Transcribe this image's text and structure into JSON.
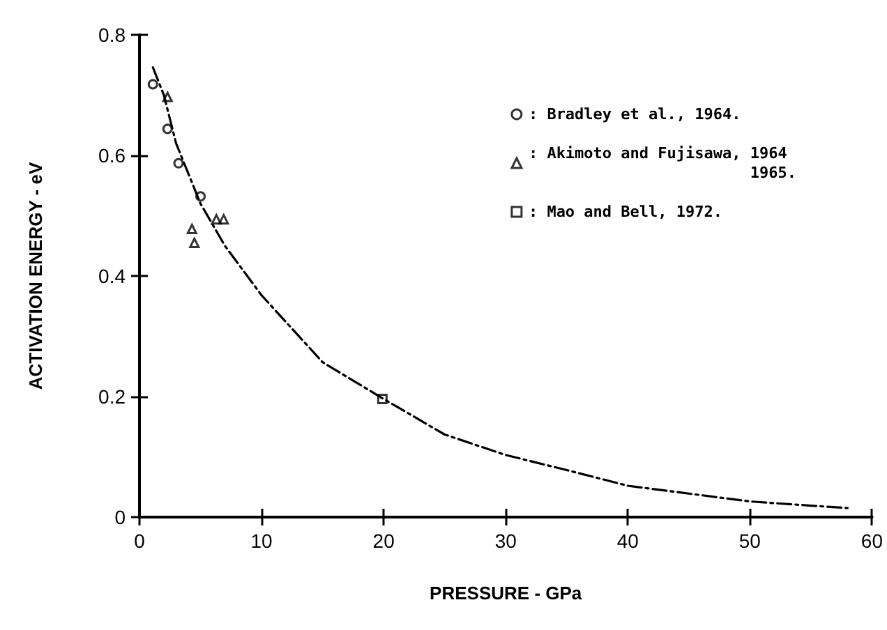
{
  "chart_data": {
    "type": "scatter",
    "xlabel": "PRESSURE - GPa",
    "ylabel": "ACTIVATION ENERGY - eV",
    "xlim": [
      0,
      60
    ],
    "xticks": [
      0,
      10,
      20,
      30,
      40,
      50,
      60
    ],
    "ylim": [
      0,
      0.8
    ],
    "yticks": [
      0,
      0.2,
      0.4,
      0.6,
      0.8
    ],
    "grid": false,
    "legend": "top right",
    "series": [
      {
        "name": ": Bradley et al., 1964.",
        "marker": "circle",
        "color": "#000000",
        "x": [
          1.1,
          2.3,
          3.2,
          5.0
        ],
        "values": [
          0.718,
          0.644,
          0.587,
          0.532
        ]
      },
      {
        "name": ": Akimoto and Fujisawa, 1964\n1965.",
        "marker": "triangle",
        "color": "#000000",
        "x": [
          2.3,
          4.3,
          4.5,
          6.3,
          6.9
        ],
        "values": [
          0.697,
          0.478,
          0.455,
          0.494,
          0.494
        ]
      },
      {
        "name": ": Mao and Bell, 1972.",
        "marker": "square",
        "color": "#000000",
        "x": [
          19.9
        ],
        "values": [
          0.196
        ]
      },
      {
        "type": "line",
        "marker": "none",
        "line_style": "dashed",
        "color": "#000000",
        "x": [
          1.1,
          2,
          3,
          5,
          7,
          10,
          15,
          20,
          25,
          30,
          35,
          40,
          45,
          50,
          55,
          58
        ],
        "values": [
          0.746,
          0.7,
          0.62,
          0.52,
          0.45,
          0.368,
          0.257,
          0.196,
          0.137,
          0.103,
          0.078,
          0.052,
          0.039,
          0.026,
          0.019,
          0.015
        ]
      }
    ]
  }
}
